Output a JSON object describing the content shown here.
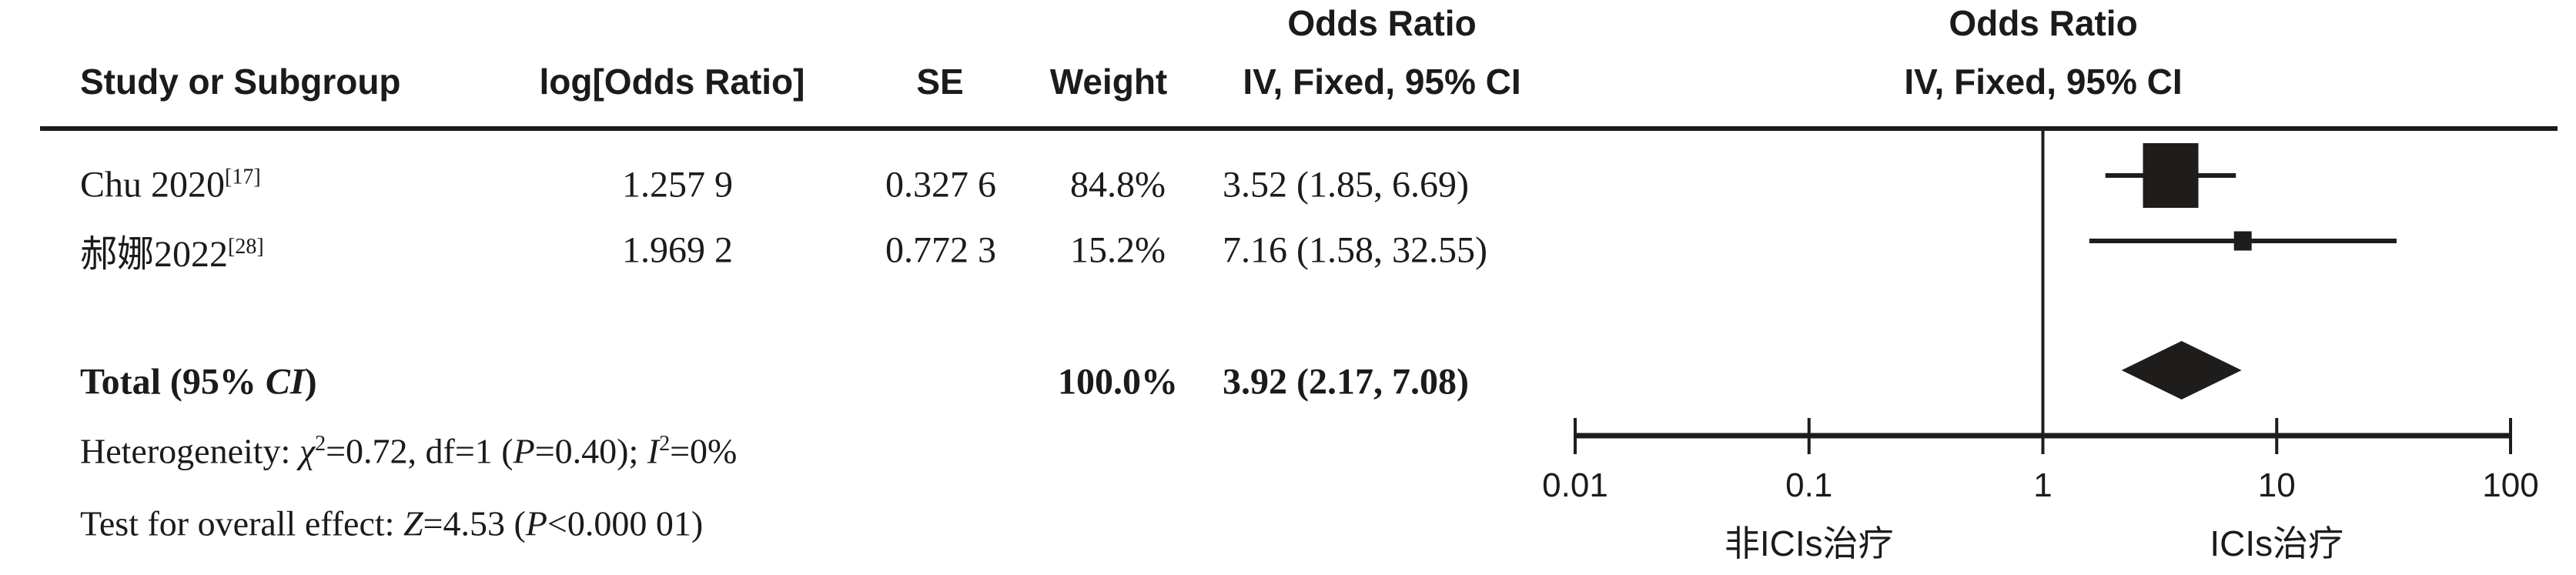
{
  "header": {
    "col_study": "Study or Subgroup",
    "col_log_or": "log[Odds Ratio]",
    "col_se": "SE",
    "col_weight": "Weight",
    "col_or_line1": "Odds Ratio",
    "col_or_line2": "IV, Fixed, 95% CI",
    "plot_or_line1": "Odds Ratio",
    "plot_or_line2": "IV, Fixed, 95% CI"
  },
  "rows": [
    {
      "study": "Chu 2020",
      "ref": "[17]",
      "log_or": "1.257 9",
      "se": "0.327 6",
      "weight": "84.8%",
      "or_ci": "3.52 (1.85, 6.69)"
    },
    {
      "study": "郝娜2022",
      "ref": "[28]",
      "log_or": "1.969 2",
      "se": "0.772 3",
      "weight": "15.2%",
      "or_ci": "7.16 (1.58, 32.55)"
    }
  ],
  "total": {
    "label_pre": "Total (95% ",
    "label_ci": "CI",
    "label_post": ")",
    "weight": "100.0%",
    "or_ci": "3.92 (2.17, 7.08)"
  },
  "heterogeneity": {
    "pre": "Heterogeneity: ",
    "chi": "χ",
    "chi_sup": "2",
    "mid1": "=0.72, df=1 (",
    "p": "P",
    "mid2": "=0.40); ",
    "i": "I",
    "i_sup": "2",
    "end": "=0%"
  },
  "overall_test": {
    "pre": "Test for overall effect: ",
    "z": "Z",
    "mid": "=4.53 (",
    "p": "P",
    "end": "<0.000 01)"
  },
  "chart_data": {
    "type": "forest",
    "x_scale": "log10",
    "x_range": [
      0.01,
      100
    ],
    "x_ticks": [
      0.01,
      0.1,
      1,
      10,
      100
    ],
    "x_tick_labels": [
      "0.01",
      "0.1",
      "1",
      "10",
      "100"
    ],
    "null_line": 1,
    "effect_measure": "Odds Ratio, IV, Fixed, 95% CI",
    "studies": [
      {
        "name": "Chu 2020",
        "or": 3.52,
        "ci_low": 1.85,
        "ci_high": 6.69,
        "weight_pct": 84.8
      },
      {
        "name": "郝娜2022",
        "or": 7.16,
        "ci_low": 1.58,
        "ci_high": 32.55,
        "weight_pct": 15.2
      }
    ],
    "total": {
      "label": "Total (95% CI)",
      "or": 3.92,
      "ci_low": 2.17,
      "ci_high": 7.08,
      "weight_pct": 100.0
    },
    "favours_left": "非ICIs治疗",
    "favours_right": "ICIs治疗",
    "marker_color": "#1f1c1c",
    "heterogeneity_text": "Heterogeneity: χ²=0.72, df=1 (P=0.40); I²=0%",
    "overall_effect_text": "Test for overall effect: Z=4.53 (P<0.000 01)"
  }
}
